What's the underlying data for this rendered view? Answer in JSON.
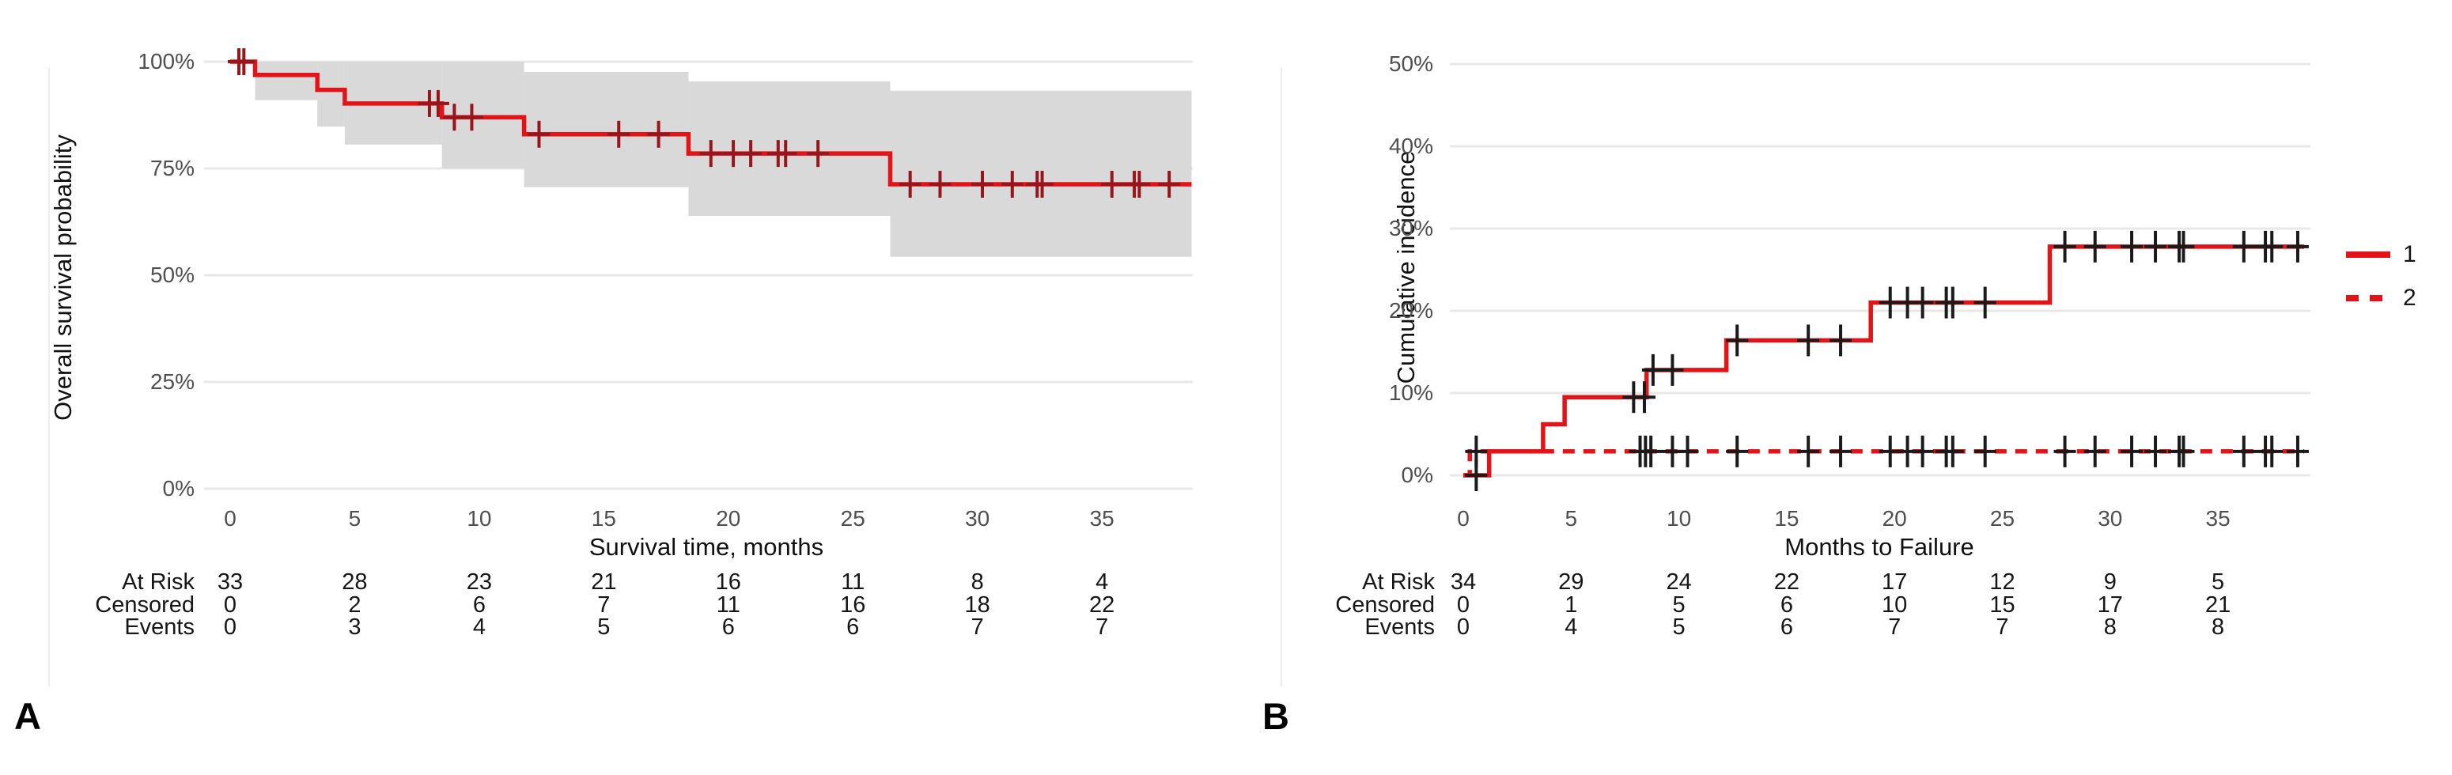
{
  "page": {
    "background": "#ffffff"
  },
  "chart_data": [
    {
      "panel_letter": "A",
      "type": "line",
      "subtype": "kaplan-meier-step",
      "xlabel": "Survival time, months",
      "ylabel": "Overall survival probability",
      "xlim": [
        0,
        39
      ],
      "ylim": [
        0,
        100
      ],
      "grid": true,
      "xticks": [
        0,
        5,
        10,
        15,
        20,
        25,
        30,
        35
      ],
      "yticks": [
        {
          "v": 0,
          "label": "0%"
        },
        {
          "v": 25,
          "label": "25%"
        },
        {
          "v": 50,
          "label": "50%"
        },
        {
          "v": 75,
          "label": "75%"
        },
        {
          "v": 100,
          "label": "100%"
        }
      ],
      "series": [
        {
          "name": "Overall survival",
          "style": "solid",
          "color": "#e41317",
          "points": [
            [
              0,
              100
            ],
            [
              1.0,
              96.9
            ],
            [
              3.5,
              93.4
            ],
            [
              4.6,
              90.2
            ],
            [
              8.5,
              87.0
            ],
            [
              11.8,
              83.0
            ],
            [
              18.4,
              78.5
            ],
            [
              26.5,
              71.3
            ]
          ],
          "end_x": 38.6,
          "censor_color": "#96161c",
          "censors": [
            [
              0.35,
              100
            ],
            [
              0.55,
              100
            ],
            [
              8.0,
              90.2
            ],
            [
              8.35,
              90.2
            ],
            [
              9.0,
              87.0
            ],
            [
              9.7,
              87.0
            ],
            [
              12.4,
              83.0
            ],
            [
              15.6,
              83.0
            ],
            [
              17.2,
              83.0
            ],
            [
              19.3,
              78.5
            ],
            [
              20.2,
              78.5
            ],
            [
              20.9,
              78.5
            ],
            [
              22.0,
              78.5
            ],
            [
              22.3,
              78.5
            ],
            [
              23.6,
              78.5
            ],
            [
              27.3,
              71.3
            ],
            [
              28.5,
              71.3
            ],
            [
              30.2,
              71.3
            ],
            [
              31.4,
              71.3
            ],
            [
              32.4,
              71.3
            ],
            [
              32.6,
              71.3
            ],
            [
              35.4,
              71.3
            ],
            [
              36.3,
              71.3
            ],
            [
              36.5,
              71.3
            ],
            [
              37.7,
              71.3
            ]
          ]
        }
      ],
      "confidence_band": {
        "color": "#d9d9d9",
        "steps": [
          [
            1.0,
            3.5,
            100,
            91.0
          ],
          [
            3.5,
            4.6,
            100,
            84.8
          ],
          [
            4.6,
            8.5,
            100,
            80.6
          ],
          [
            8.5,
            11.8,
            100,
            75.0
          ],
          [
            11.8,
            18.4,
            97.6,
            70.6
          ],
          [
            18.4,
            26.5,
            95.4,
            63.9
          ],
          [
            26.5,
            38.6,
            93.2,
            54.3
          ]
        ]
      },
      "risk_table": {
        "row_labels": [
          "At Risk",
          "Censored",
          "Events"
        ],
        "times": [
          0,
          5,
          10,
          15,
          20,
          25,
          30,
          35
        ],
        "rows": [
          [
            33,
            28,
            23,
            21,
            16,
            11,
            8,
            4
          ],
          [
            0,
            2,
            6,
            7,
            11,
            16,
            18,
            22
          ],
          [
            0,
            3,
            4,
            5,
            6,
            6,
            7,
            7
          ]
        ]
      }
    },
    {
      "panel_letter": "B",
      "type": "line",
      "subtype": "cumulative-incidence-step",
      "xlabel": "Months to Failure",
      "ylabel": "Cumulative incidence",
      "xlim": [
        0,
        39
      ],
      "ylim": [
        0,
        50
      ],
      "grid": true,
      "legend": [
        "1",
        "2"
      ],
      "legend_position": "right",
      "xticks": [
        0,
        5,
        10,
        15,
        20,
        25,
        30,
        35
      ],
      "yticks": [
        {
          "v": 0,
          "label": "0%"
        },
        {
          "v": 10,
          "label": "10%"
        },
        {
          "v": 20,
          "label": "20%"
        },
        {
          "v": 30,
          "label": "30%"
        },
        {
          "v": 40,
          "label": "40%"
        },
        {
          "v": 50,
          "label": "50%"
        }
      ],
      "series": [
        {
          "name": "1",
          "style": "solid",
          "color": "#e41317",
          "points": [
            [
              0,
              0
            ],
            [
              1.2,
              2.9
            ],
            [
              3.7,
              6.2
            ],
            [
              4.7,
              9.5
            ],
            [
              8.5,
              12.8
            ],
            [
              12.2,
              16.4
            ],
            [
              18.9,
              21.0
            ],
            [
              27.2,
              27.8
            ]
          ],
          "end_x": 39.0,
          "censor_color": "#1a1a1a",
          "censors": [
            [
              0.6,
              0
            ],
            [
              7.9,
              9.5
            ],
            [
              8.4,
              9.5
            ],
            [
              8.8,
              12.8
            ],
            [
              9.7,
              12.8
            ],
            [
              12.7,
              16.4
            ],
            [
              16.0,
              16.4
            ],
            [
              17.5,
              16.4
            ],
            [
              19.8,
              21.0
            ],
            [
              20.6,
              21.0
            ],
            [
              21.3,
              21.0
            ],
            [
              22.4,
              21.0
            ],
            [
              22.7,
              21.0
            ],
            [
              24.2,
              21.0
            ],
            [
              27.9,
              27.8
            ],
            [
              29.3,
              27.8
            ],
            [
              31.0,
              27.8
            ],
            [
              32.1,
              27.8
            ],
            [
              33.2,
              27.8
            ],
            [
              33.4,
              27.8
            ],
            [
              36.2,
              27.8
            ],
            [
              37.2,
              27.8
            ],
            [
              37.5,
              27.8
            ],
            [
              38.7,
              27.8
            ]
          ]
        },
        {
          "name": "2",
          "style": "dashed",
          "color": "#e41317",
          "points": [
            [
              0,
              0
            ],
            [
              0.3,
              2.9
            ]
          ],
          "end_x": 39.0,
          "censor_color": "#1a1a1a",
          "censors": [
            [
              0.6,
              2.9
            ],
            [
              8.2,
              2.9
            ],
            [
              8.45,
              2.9
            ],
            [
              8.7,
              2.9
            ],
            [
              9.7,
              2.9
            ],
            [
              10.4,
              2.9
            ],
            [
              12.7,
              2.9
            ],
            [
              16.0,
              2.9
            ],
            [
              17.5,
              2.9
            ],
            [
              19.8,
              2.9
            ],
            [
              20.6,
              2.9
            ],
            [
              21.3,
              2.9
            ],
            [
              22.4,
              2.9
            ],
            [
              22.7,
              2.9
            ],
            [
              24.2,
              2.9
            ],
            [
              27.9,
              2.9
            ],
            [
              29.3,
              2.9
            ],
            [
              31.0,
              2.9
            ],
            [
              32.1,
              2.9
            ],
            [
              33.2,
              2.9
            ],
            [
              33.4,
              2.9
            ],
            [
              36.2,
              2.9
            ],
            [
              37.2,
              2.9
            ],
            [
              37.5,
              2.9
            ],
            [
              38.7,
              2.9
            ]
          ]
        }
      ],
      "risk_table": {
        "row_labels": [
          "At Risk",
          "Censored",
          "Events"
        ],
        "times": [
          0,
          5,
          10,
          15,
          20,
          25,
          30,
          35
        ],
        "rows": [
          [
            34,
            29,
            24,
            22,
            17,
            12,
            9,
            5
          ],
          [
            0,
            1,
            5,
            6,
            10,
            15,
            17,
            21
          ],
          [
            0,
            4,
            5,
            6,
            7,
            7,
            8,
            8
          ]
        ]
      }
    }
  ]
}
